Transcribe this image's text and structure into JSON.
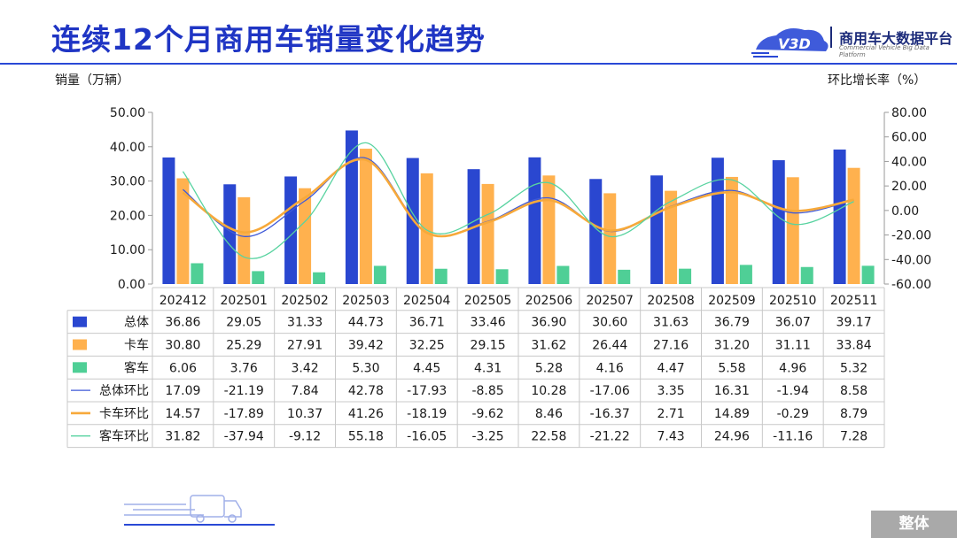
{
  "header": {
    "title": "连续12个月商用车销量变化趋势",
    "logo_mark": "V3D",
    "logo_cn": "商用车大数据平台",
    "logo_en": "Commercial Vehicle Big Data Platform"
  },
  "axis_labels": {
    "left": "销量（万辆）",
    "right": "环比增长率（%）"
  },
  "footer": {
    "tab_label": "整体"
  },
  "colors": {
    "title": "#1f35c4",
    "total": "#2a47d0",
    "truck": "#ffb14e",
    "bus": "#4fcf96",
    "total_line": "#3f5ad8",
    "truck_line": "#f7a93a",
    "bus_line": "#58d3a0"
  },
  "chart_data": {
    "type": "bar",
    "categories": [
      "202412",
      "202501",
      "202502",
      "202503",
      "202504",
      "202505",
      "202506",
      "202507",
      "202508",
      "202509",
      "202510",
      "202511"
    ],
    "series": [
      {
        "name": "总体",
        "type": "bar",
        "axis": "left",
        "values": [
          36.86,
          29.05,
          31.33,
          44.73,
          36.71,
          33.46,
          36.9,
          30.6,
          31.63,
          36.79,
          36.07,
          39.17
        ]
      },
      {
        "name": "卡车",
        "type": "bar",
        "axis": "left",
        "values": [
          30.8,
          25.29,
          27.91,
          39.42,
          32.25,
          29.15,
          31.62,
          26.44,
          27.16,
          31.2,
          31.11,
          33.84
        ]
      },
      {
        "name": "客车",
        "type": "bar",
        "axis": "left",
        "values": [
          6.06,
          3.76,
          3.42,
          5.3,
          4.45,
          4.31,
          5.28,
          4.16,
          4.47,
          5.58,
          4.96,
          5.32
        ]
      },
      {
        "name": "总体环比",
        "type": "line",
        "axis": "right",
        "values": [
          17.09,
          -21.19,
          7.84,
          42.78,
          -17.93,
          -8.85,
          10.28,
          -17.06,
          3.35,
          16.31,
          -1.94,
          8.58
        ]
      },
      {
        "name": "卡车环比",
        "type": "line",
        "axis": "right",
        "values": [
          14.57,
          -17.89,
          10.37,
          41.26,
          -18.19,
          -9.62,
          8.46,
          -16.37,
          2.71,
          14.89,
          -0.29,
          8.79
        ]
      },
      {
        "name": "客车环比",
        "type": "line",
        "axis": "right",
        "values": [
          31.82,
          -37.94,
          -9.12,
          55.18,
          -16.05,
          -3.25,
          22.58,
          -21.22,
          7.43,
          24.96,
          -11.16,
          7.28
        ]
      }
    ],
    "left_axis": {
      "ylim": [
        0,
        50
      ],
      "ticks": [
        "0.00",
        "10.00",
        "20.00",
        "30.00",
        "40.00",
        "50.00"
      ]
    },
    "right_axis": {
      "ylim": [
        -60,
        80
      ],
      "ticks": [
        "-60.00",
        "-40.00",
        "-20.00",
        "0.00",
        "20.00",
        "40.00",
        "60.00",
        "80.00"
      ]
    },
    "table": {
      "rows": [
        {
          "label": "总体",
          "cells": [
            "36.86",
            "29.05",
            "31.33",
            "44.73",
            "36.71",
            "33.46",
            "36.90",
            "30.60",
            "31.63",
            "36.79",
            "36.07",
            "39.17"
          ]
        },
        {
          "label": "卡车",
          "cells": [
            "30.80",
            "25.29",
            "27.91",
            "39.42",
            "32.25",
            "29.15",
            "31.62",
            "26.44",
            "27.16",
            "31.20",
            "31.11",
            "33.84"
          ]
        },
        {
          "label": "客车",
          "cells": [
            "6.06",
            "3.76",
            "3.42",
            "5.30",
            "4.45",
            "4.31",
            "5.28",
            "4.16",
            "4.47",
            "5.58",
            "4.96",
            "5.32"
          ]
        },
        {
          "label": "总体环比",
          "cells": [
            "17.09",
            "-21.19",
            "7.84",
            "42.78",
            "-17.93",
            "-8.85",
            "10.28",
            "-17.06",
            "3.35",
            "16.31",
            "-1.94",
            "8.58"
          ]
        },
        {
          "label": "卡车环比",
          "cells": [
            "14.57",
            "-17.89",
            "10.37",
            "41.26",
            "-18.19",
            "-9.62",
            "8.46",
            "-16.37",
            "2.71",
            "14.89",
            "-0.29",
            "8.79"
          ]
        },
        {
          "label": "客车环比",
          "cells": [
            "31.82",
            "-37.94",
            "-9.12",
            "55.18",
            "-16.05",
            "-3.25",
            "22.58",
            "-21.22",
            "7.43",
            "24.96",
            "-11.16",
            "7.28"
          ]
        }
      ]
    },
    "grid": false,
    "legend": "table"
  }
}
